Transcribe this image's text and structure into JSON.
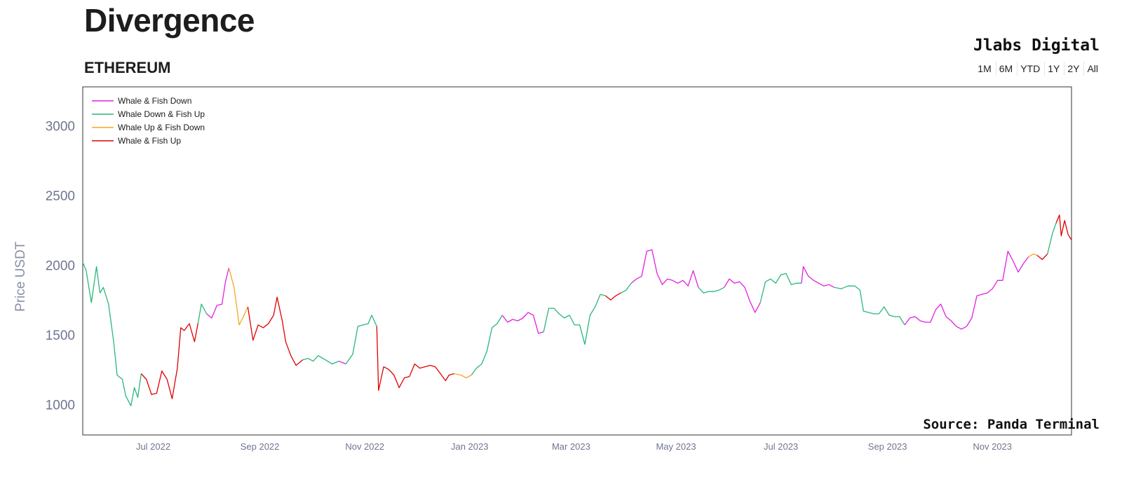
{
  "header": {
    "title": "Divergence",
    "subtitle": "ETHEREUM",
    "brand": "Jlabs Digital",
    "ranges": [
      "1M",
      "6M",
      "YTD",
      "1Y",
      "2Y",
      "All"
    ]
  },
  "footer": {
    "source": "Source: Panda Terminal"
  },
  "colors": {
    "Whale & Fish Down": "#e020e0",
    "Whale Down & Fish Up": "#2ab77a",
    "Whale Up & Fish Down": "#f5a623",
    "Whale & Fish Up": "#e00000"
  },
  "chart_data": {
    "type": "line",
    "ylabel": "Price USDT",
    "xlabel": "",
    "ylim": [
      780,
      3280
    ],
    "xlim": [
      "2022-05-21",
      "2023-12-17"
    ],
    "yticks": [
      1000,
      1500,
      2000,
      2500,
      3000
    ],
    "xticks": [
      {
        "date": "2022-07-01",
        "label": "Jul 2022"
      },
      {
        "date": "2022-09-01",
        "label": "Sep 2022"
      },
      {
        "date": "2022-11-01",
        "label": "Nov 2022"
      },
      {
        "date": "2023-01-01",
        "label": "Jan 2023"
      },
      {
        "date": "2023-03-01",
        "label": "Mar 2023"
      },
      {
        "date": "2023-05-01",
        "label": "May 2023"
      },
      {
        "date": "2023-07-01",
        "label": "Jul 2023"
      },
      {
        "date": "2023-09-01",
        "label": "Sep 2023"
      },
      {
        "date": "2023-11-01",
        "label": "Nov 2023"
      }
    ],
    "legend_placement": "top-left",
    "series": [
      {
        "name": "Whale Down & Fish Up",
        "x": [
          "2022-05-21",
          "2022-05-23",
          "2022-05-26",
          "2022-05-29",
          "2022-05-31",
          "2022-06-02",
          "2022-06-05",
          "2022-06-08",
          "2022-06-10",
          "2022-06-13",
          "2022-06-15",
          "2022-06-18",
          "2022-06-20",
          "2022-06-22",
          "2022-06-24"
        ],
        "y": [
          2020,
          1960,
          1730,
          1990,
          1800,
          1840,
          1720,
          1450,
          1210,
          1180,
          1060,
          990,
          1120,
          1050,
          1220
        ]
      },
      {
        "name": "Whale & Fish Up",
        "x": [
          "2022-06-24",
          "2022-06-27",
          "2022-06-30",
          "2022-07-03",
          "2022-07-06",
          "2022-07-09",
          "2022-07-12",
          "2022-07-15",
          "2022-07-17",
          "2022-07-19",
          "2022-07-22",
          "2022-07-25",
          "2022-07-27"
        ],
        "y": [
          1220,
          1180,
          1070,
          1080,
          1240,
          1180,
          1040,
          1260,
          1550,
          1530,
          1580,
          1450,
          1580
        ]
      },
      {
        "name": "Whale Down & Fish Up",
        "x": [
          "2022-07-27",
          "2022-07-29",
          "2022-08-01"
        ],
        "y": [
          1580,
          1720,
          1650
        ]
      },
      {
        "name": "Whale & Fish Down",
        "x": [
          "2022-08-01",
          "2022-08-04",
          "2022-08-07",
          "2022-08-10",
          "2022-08-12",
          "2022-08-14"
        ],
        "y": [
          1650,
          1620,
          1710,
          1720,
          1880,
          1980
        ]
      },
      {
        "name": "Whale Up & Fish Down",
        "x": [
          "2022-08-14",
          "2022-08-17",
          "2022-08-20",
          "2022-08-22",
          "2022-08-25"
        ],
        "y": [
          1980,
          1840,
          1570,
          1620,
          1700
        ]
      },
      {
        "name": "Whale & Fish Up",
        "x": [
          "2022-08-25",
          "2022-08-28",
          "2022-08-31",
          "2022-09-03",
          "2022-09-06",
          "2022-09-09",
          "2022-09-11",
          "2022-09-14",
          "2022-09-16",
          "2022-09-19",
          "2022-09-22",
          "2022-09-26"
        ],
        "y": [
          1700,
          1460,
          1570,
          1550,
          1580,
          1640,
          1770,
          1600,
          1450,
          1350,
          1280,
          1320
        ]
      },
      {
        "name": "Whale Down & Fish Up",
        "x": [
          "2022-09-26",
          "2022-09-29",
          "2022-10-02",
          "2022-10-05",
          "2022-10-09",
          "2022-10-13",
          "2022-10-17"
        ],
        "y": [
          1320,
          1330,
          1310,
          1350,
          1320,
          1290,
          1310
        ]
      },
      {
        "name": "Whale & Fish Down",
        "x": [
          "2022-10-17",
          "2022-10-19",
          "2022-10-21"
        ],
        "y": [
          1310,
          1300,
          1290
        ]
      },
      {
        "name": "Whale Down & Fish Up",
        "x": [
          "2022-10-21",
          "2022-10-25",
          "2022-10-28",
          "2022-10-31",
          "2022-11-03",
          "2022-11-05",
          "2022-11-08"
        ],
        "y": [
          1290,
          1360,
          1560,
          1570,
          1580,
          1640,
          1560
        ]
      },
      {
        "name": "Whale & Fish Up",
        "x": [
          "2022-11-08",
          "2022-11-09",
          "2022-11-12",
          "2022-11-15",
          "2022-11-18",
          "2022-11-21",
          "2022-11-24",
          "2022-11-27",
          "2022-11-30",
          "2022-12-03",
          "2022-12-06",
          "2022-12-09",
          "2022-12-12",
          "2022-12-15",
          "2022-12-18",
          "2022-12-20",
          "2022-12-23"
        ],
        "y": [
          1560,
          1100,
          1270,
          1250,
          1210,
          1120,
          1190,
          1200,
          1290,
          1260,
          1270,
          1280,
          1270,
          1220,
          1170,
          1210,
          1220
        ]
      },
      {
        "name": "Whale Up & Fish Down",
        "x": [
          "2022-12-23",
          "2022-12-27",
          "2022-12-30",
          "2023-01-02"
        ],
        "y": [
          1220,
          1210,
          1190,
          1210
        ]
      },
      {
        "name": "Whale Down & Fish Up",
        "x": [
          "2023-01-02",
          "2023-01-05",
          "2023-01-08",
          "2023-01-11",
          "2023-01-14",
          "2023-01-17",
          "2023-01-20"
        ],
        "y": [
          1210,
          1260,
          1290,
          1380,
          1550,
          1580,
          1640
        ]
      },
      {
        "name": "Whale & Fish Down",
        "x": [
          "2023-01-20",
          "2023-01-23",
          "2023-01-26",
          "2023-01-29",
          "2023-02-01",
          "2023-02-04",
          "2023-02-07",
          "2023-02-10",
          "2023-02-13"
        ],
        "y": [
          1640,
          1590,
          1610,
          1600,
          1620,
          1660,
          1640,
          1510,
          1520
        ]
      },
      {
        "name": "Whale Down & Fish Up",
        "x": [
          "2023-02-13",
          "2023-02-16",
          "2023-02-19",
          "2023-02-22",
          "2023-02-25",
          "2023-02-28",
          "2023-03-03",
          "2023-03-06",
          "2023-03-09"
        ],
        "y": [
          1520,
          1690,
          1690,
          1650,
          1620,
          1640,
          1570,
          1570,
          1430
        ]
      },
      {
        "name": "Whale Down & Fish Up",
        "x": [
          "2023-03-09",
          "2023-03-12",
          "2023-03-15",
          "2023-03-18",
          "2023-03-21"
        ],
        "y": [
          1430,
          1640,
          1700,
          1790,
          1780
        ]
      },
      {
        "name": "Whale & Fish Up",
        "x": [
          "2023-03-21",
          "2023-03-24",
          "2023-03-27",
          "2023-03-30"
        ],
        "y": [
          1780,
          1750,
          1780,
          1800
        ]
      },
      {
        "name": "Whale Down & Fish Up",
        "x": [
          "2023-03-30",
          "2023-04-02",
          "2023-04-05"
        ],
        "y": [
          1800,
          1820,
          1870
        ]
      },
      {
        "name": "Whale & Fish Down",
        "x": [
          "2023-04-05",
          "2023-04-08",
          "2023-04-11",
          "2023-04-14",
          "2023-04-17",
          "2023-04-20",
          "2023-04-23",
          "2023-04-26",
          "2023-04-29",
          "2023-05-02",
          "2023-05-05",
          "2023-05-08",
          "2023-05-11",
          "2023-05-14"
        ],
        "y": [
          1870,
          1900,
          1920,
          2100,
          2110,
          1940,
          1860,
          1900,
          1890,
          1870,
          1890,
          1850,
          1960,
          1840
        ]
      },
      {
        "name": "Whale Down & Fish Up",
        "x": [
          "2023-05-14",
          "2023-05-17",
          "2023-05-20",
          "2023-05-23",
          "2023-05-26",
          "2023-05-29"
        ],
        "y": [
          1840,
          1800,
          1810,
          1810,
          1820,
          1840
        ]
      },
      {
        "name": "Whale & Fish Down",
        "x": [
          "2023-05-29",
          "2023-06-01",
          "2023-06-04",
          "2023-06-07",
          "2023-06-10",
          "2023-06-13",
          "2023-06-16",
          "2023-06-19"
        ],
        "y": [
          1840,
          1900,
          1870,
          1880,
          1840,
          1740,
          1660,
          1730
        ]
      },
      {
        "name": "Whale Down & Fish Up",
        "x": [
          "2023-06-19",
          "2023-06-22",
          "2023-06-25",
          "2023-06-28",
          "2023-07-01",
          "2023-07-04",
          "2023-07-07",
          "2023-07-10",
          "2023-07-13"
        ],
        "y": [
          1730,
          1880,
          1900,
          1870,
          1930,
          1940,
          1860,
          1870,
          1870
        ]
      },
      {
        "name": "Whale & Fish Down",
        "x": [
          "2023-07-13",
          "2023-07-14",
          "2023-07-17",
          "2023-07-20",
          "2023-07-23",
          "2023-07-26",
          "2023-07-29",
          "2023-08-01"
        ],
        "y": [
          1870,
          1990,
          1920,
          1890,
          1870,
          1850,
          1860,
          1840
        ]
      },
      {
        "name": "Whale Down & Fish Up",
        "x": [
          "2023-08-01",
          "2023-08-05",
          "2023-08-09",
          "2023-08-13",
          "2023-08-16",
          "2023-08-18",
          "2023-08-21",
          "2023-08-24",
          "2023-08-27",
          "2023-08-30",
          "2023-09-02",
          "2023-09-05",
          "2023-09-08",
          "2023-09-11"
        ],
        "y": [
          1840,
          1830,
          1850,
          1850,
          1820,
          1670,
          1660,
          1650,
          1650,
          1700,
          1640,
          1630,
          1630,
          1570
        ]
      },
      {
        "name": "Whale & Fish Down",
        "x": [
          "2023-09-11",
          "2023-09-14",
          "2023-09-17",
          "2023-09-20",
          "2023-09-23",
          "2023-09-26",
          "2023-09-29",
          "2023-10-02",
          "2023-10-05",
          "2023-10-08",
          "2023-10-11",
          "2023-10-14",
          "2023-10-17",
          "2023-10-20",
          "2023-10-23",
          "2023-10-26",
          "2023-10-29",
          "2023-11-01",
          "2023-11-04",
          "2023-11-07",
          "2023-11-10",
          "2023-11-13",
          "2023-11-16",
          "2023-11-19",
          "2023-11-22"
        ],
        "y": [
          1570,
          1620,
          1630,
          1600,
          1590,
          1590,
          1680,
          1720,
          1630,
          1600,
          1560,
          1540,
          1560,
          1620,
          1780,
          1790,
          1800,
          1830,
          1890,
          1890,
          2100,
          2030,
          1950,
          2010,
          2060
        ]
      },
      {
        "name": "Whale Up & Fish Down",
        "x": [
          "2023-11-22",
          "2023-11-25",
          "2023-11-27"
        ],
        "y": [
          2060,
          2080,
          2070
        ]
      },
      {
        "name": "Whale & Fish Up",
        "x": [
          "2023-11-27",
          "2023-11-30",
          "2023-12-03"
        ],
        "y": [
          2070,
          2040,
          2080
        ]
      },
      {
        "name": "Whale Down & Fish Up",
        "x": [
          "2023-12-03",
          "2023-12-06",
          "2023-12-08"
        ],
        "y": [
          2080,
          2230,
          2300
        ]
      },
      {
        "name": "Whale & Fish Up",
        "x": [
          "2023-12-08",
          "2023-12-10",
          "2023-12-11",
          "2023-12-13",
          "2023-12-15",
          "2023-12-17"
        ],
        "y": [
          2300,
          2360,
          2210,
          2320,
          2220,
          2180
        ]
      }
    ]
  }
}
